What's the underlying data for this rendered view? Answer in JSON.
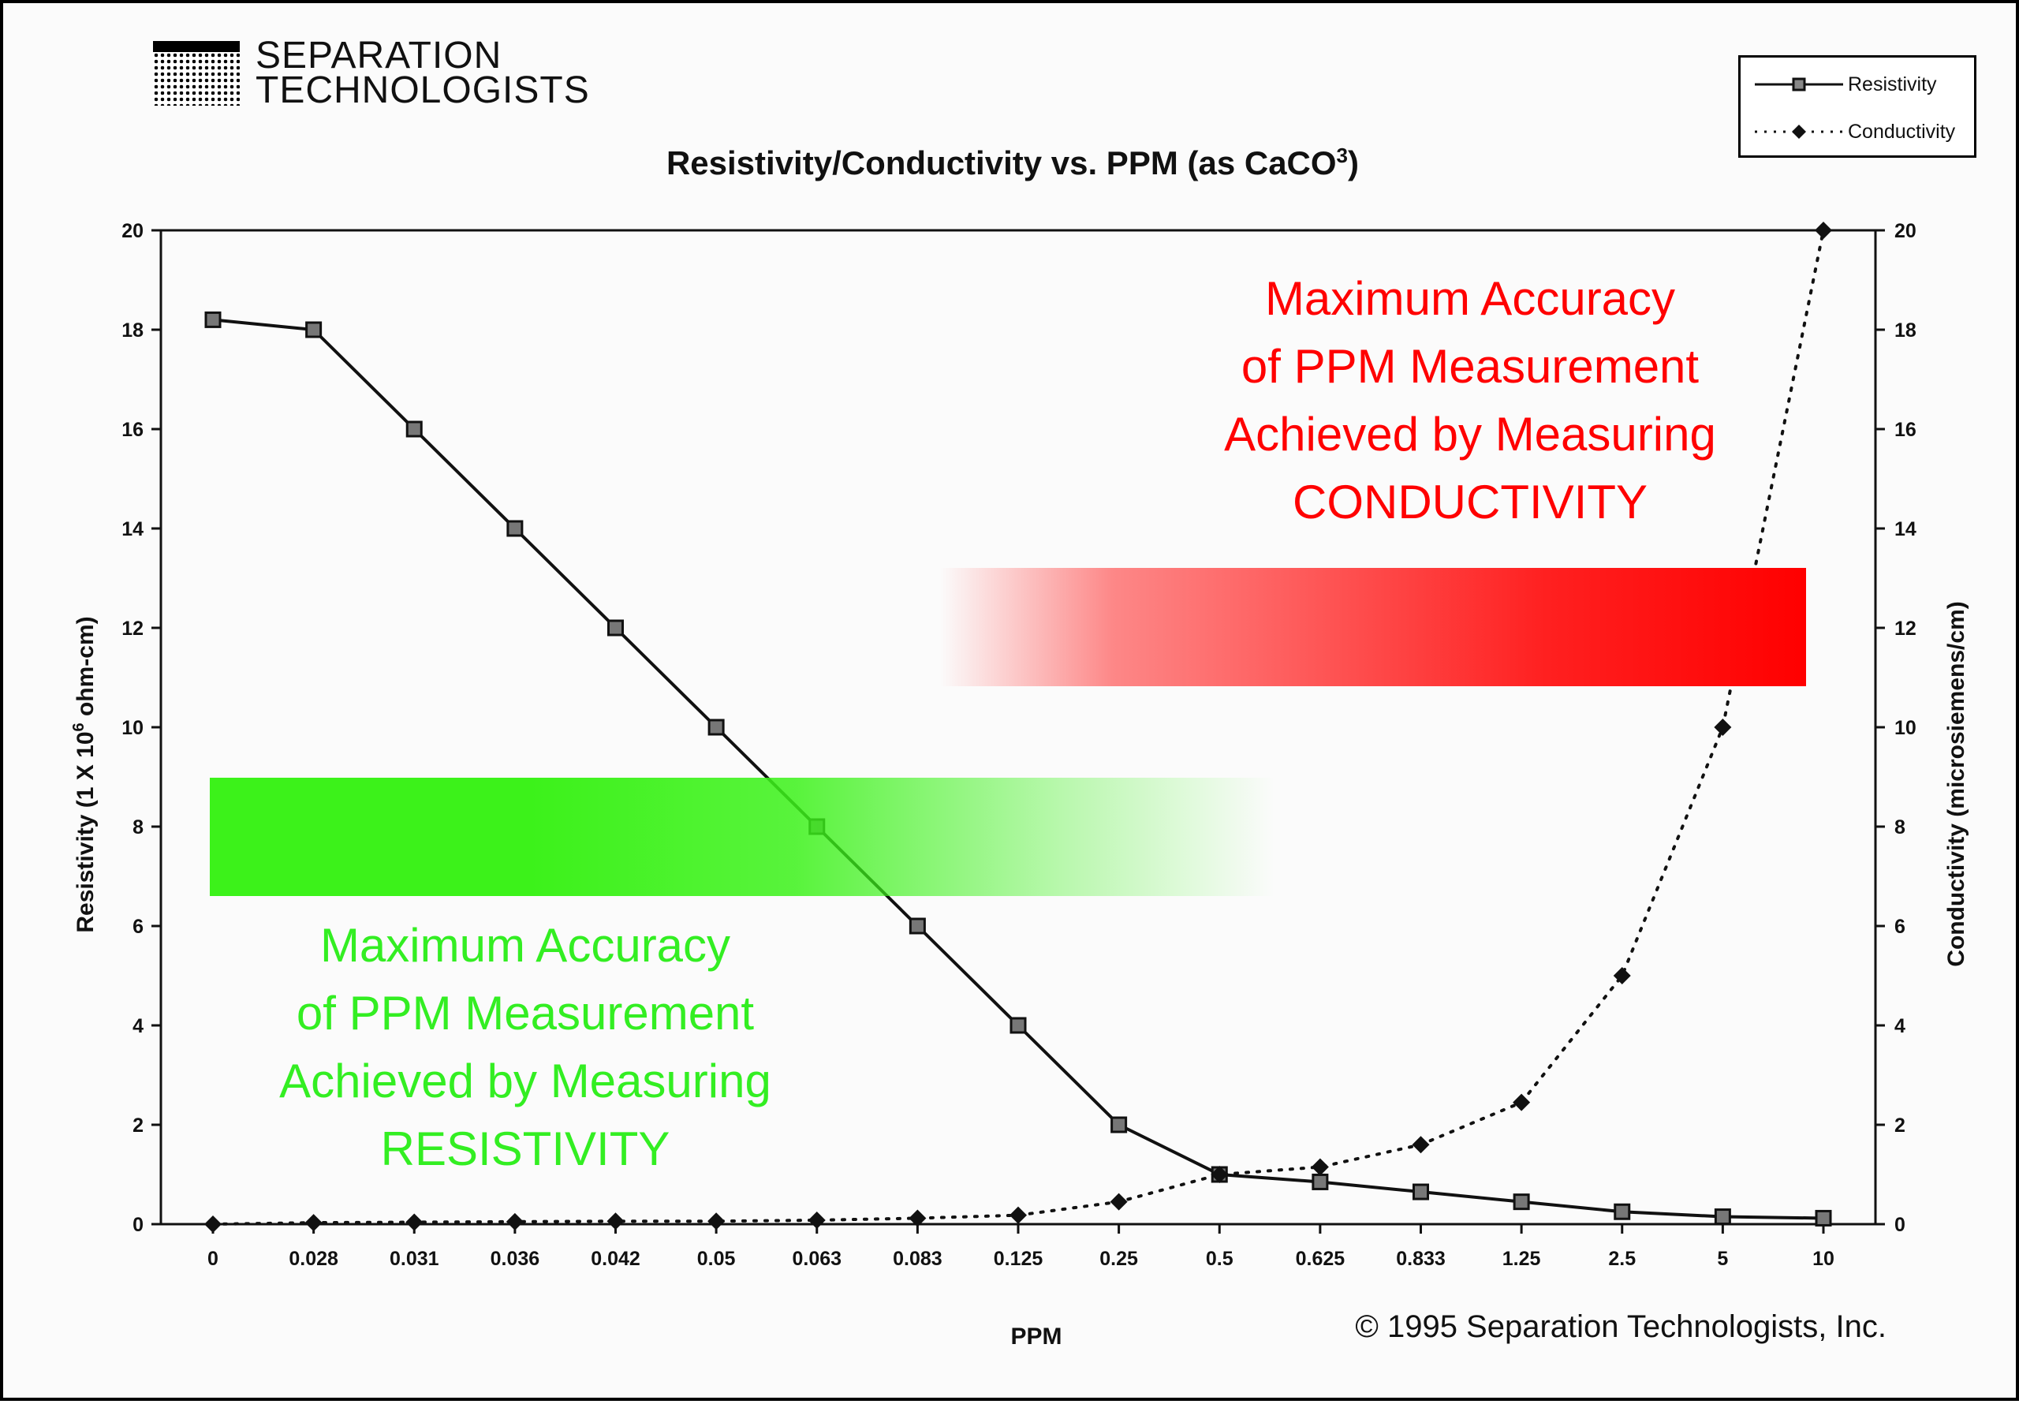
{
  "logo": {
    "line1": "SEPARATION",
    "line2": "TECHNOLOGISTS"
  },
  "legend": {
    "resistivity": "Resistivity",
    "conductivity": "Conductivity"
  },
  "copyright": "© 1995 Separation Technologists, Inc.",
  "annotations": {
    "conductivity": [
      "Maximum Accuracy",
      "of PPM Measurement",
      "Achieved by Measuring",
      "CONDUCTIVITY"
    ],
    "resistivity": [
      "Maximum Accuracy",
      "of PPM Measurement",
      "Achieved by Measuring",
      "RESISTIVITY"
    ]
  },
  "colors": {
    "conductivity_band": "#ff0000",
    "resistivity_band": "#3cf21a",
    "series": "#111111"
  },
  "chart_data": {
    "type": "line",
    "title": "Resistivity/Conductivity vs. PPM (as CaCO",
    "title_superscript": "3",
    "title_suffix": ")",
    "xlabel": "PPM",
    "ylabel": "Resistivity (1 X 10",
    "ylabel_superscript": "6",
    "ylabel_suffix": " ohm-cm)",
    "y2label": "Conductivity (microsiemens/cm)",
    "categories": [
      "0",
      "0.028",
      "0.031",
      "0.036",
      "0.042",
      "0.05",
      "0.063",
      "0.083",
      "0.125",
      "0.25",
      "0.5",
      "0.625",
      "0.833",
      "1.25",
      "2.5",
      "5",
      "10"
    ],
    "ylim": [
      0,
      20
    ],
    "y2lim": [
      0,
      20
    ],
    "yticks": [
      0,
      2,
      4,
      6,
      8,
      10,
      12,
      14,
      16,
      18,
      20
    ],
    "grid": false,
    "legend_position": "top-right",
    "series": [
      {
        "name": "Resistivity",
        "axis": "left",
        "style": "solid",
        "marker": "square",
        "values": [
          18.2,
          18.0,
          16.0,
          14.0,
          12.0,
          10.0,
          8.0,
          6.0,
          4.0,
          2.0,
          1.0,
          0.85,
          0.65,
          0.45,
          0.25,
          0.15,
          0.12
        ]
      },
      {
        "name": "Conductivity",
        "axis": "right",
        "style": "dotted",
        "marker": "diamond",
        "values": [
          0.0,
          0.03,
          0.04,
          0.05,
          0.06,
          0.06,
          0.08,
          0.12,
          0.18,
          0.45,
          1.0,
          1.15,
          1.6,
          2.45,
          5.0,
          10.0,
          20.0
        ]
      }
    ]
  }
}
